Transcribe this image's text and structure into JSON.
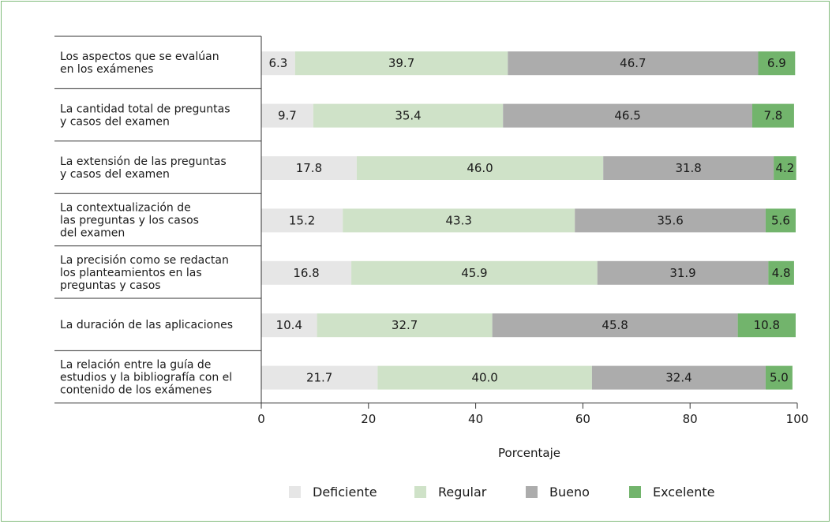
{
  "chart_data": {
    "type": "bar",
    "orientation": "horizontal",
    "stacked": true,
    "categories": [
      [
        "Los aspectos que se evalúan",
        "en los exámenes"
      ],
      [
        "La cantidad total de preguntas",
        "y casos del examen"
      ],
      [
        "La extensión de las preguntas",
        "y casos del examen"
      ],
      [
        "La contextualización de",
        "las preguntas y los casos",
        "del examen"
      ],
      [
        "La precisión como se redactan",
        "los planteamientos en las",
        "preguntas y casos"
      ],
      [
        "La duración de las aplicaciones"
      ],
      [
        "La relación entre la guía de",
        "estudios y la bibliografía con el",
        "contenido de los exámenes"
      ]
    ],
    "series": [
      {
        "name": "Deficiente",
        "color": "#e6e6e6",
        "values": [
          6.3,
          9.7,
          17.8,
          15.2,
          16.8,
          10.4,
          21.7
        ]
      },
      {
        "name": "Regular",
        "color": "#cfe2c8",
        "values": [
          39.7,
          35.4,
          46.0,
          43.3,
          45.9,
          32.7,
          40.0
        ]
      },
      {
        "name": "Bueno",
        "color": "#acacac",
        "values": [
          46.7,
          46.5,
          31.8,
          35.6,
          31.9,
          45.8,
          32.4
        ]
      },
      {
        "name": "Excelente",
        "color": "#72b46c",
        "values": [
          6.9,
          7.8,
          4.2,
          5.6,
          4.8,
          10.8,
          5.0
        ]
      }
    ],
    "xlabel": "Porcentaje",
    "xlim": [
      0,
      100
    ],
    "xticks": [
      0,
      20,
      40,
      60,
      80,
      100
    ],
    "legend_position": "bottom",
    "gridlines": false,
    "frame_color": "#7fba7a"
  }
}
